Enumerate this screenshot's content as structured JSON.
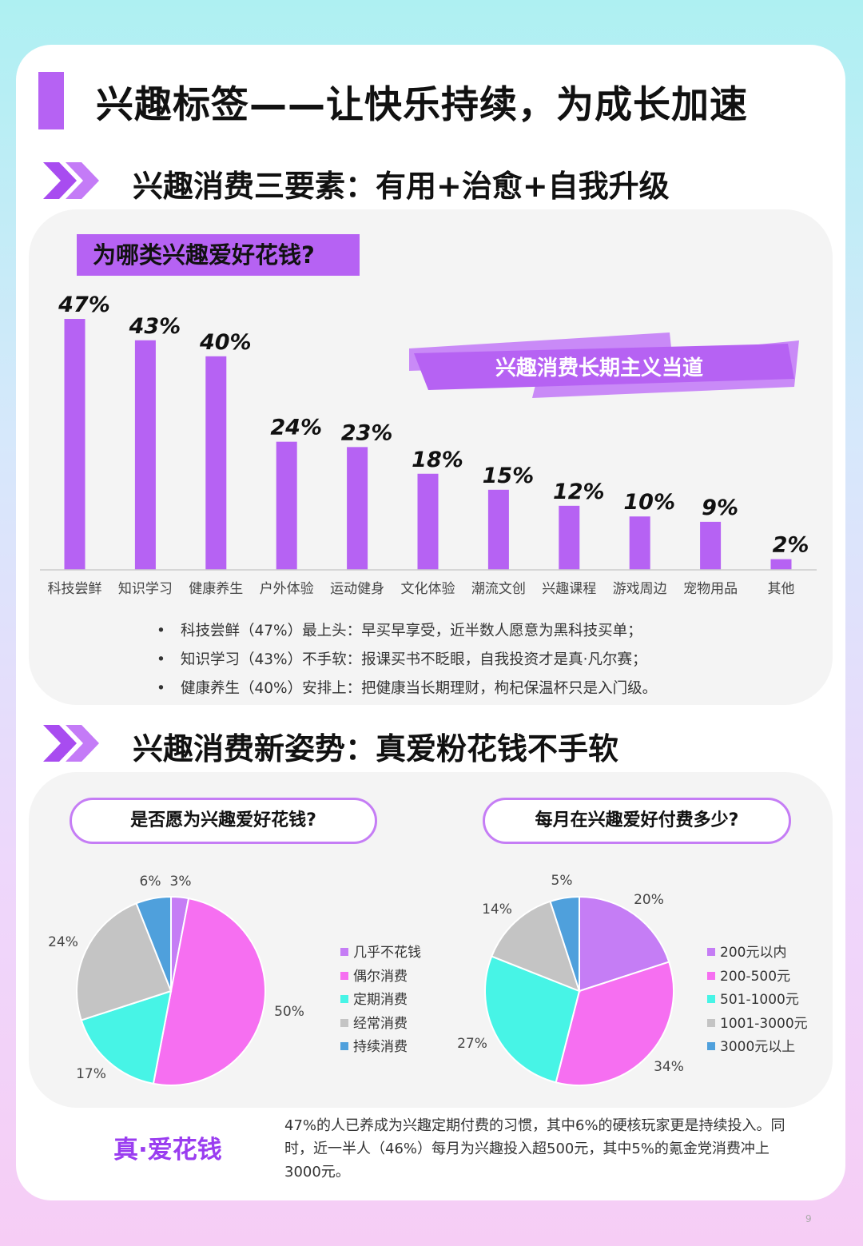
{
  "page_title": "兴趣标签——让快乐持续，为成长加速",
  "section1": {
    "title": "兴趣消费三要素：有用+治愈+自我升级",
    "question": "为哪类兴趣爱好花钱?",
    "banner": "兴趣消费长期主义当道",
    "bullets": [
      "科技尝鲜（47%）最上头：早买早享受，近半数人愿意为黑科技买单；",
      "知识学习（43%）不手软：报课买书不眨眼，自我投资才是真·凡尔赛；",
      "健康养生（40%）安排上：把健康当长期理财，枸杞保温杯只是入门级。"
    ]
  },
  "section2": {
    "title": "兴趣消费新姿势：真爱粉花钱不手软",
    "left_question": "是否愿为兴趣爱好花钱?",
    "right_question": "每月在兴趣爱好付费多少?",
    "slogan": "真·爱花钱",
    "summary": "47%的人已养成为兴趣定期付费的习惯，其中6%的硬核玩家更是持续投入。同时，近一半人（46%）每月为兴趣投入超500元，其中5%的氪金党消费冲上3000元。"
  },
  "colors": {
    "accent": "#b662f3",
    "pie": [
      "#c57df5",
      "#f66ff1",
      "#47f4e6",
      "#c4c4c4",
      "#4fa0dc"
    ]
  },
  "chart_data": [
    {
      "type": "bar",
      "title": "为哪类兴趣爱好花钱?",
      "categories": [
        "科技尝鲜",
        "知识学习",
        "健康养生",
        "户外体验",
        "运动健身",
        "文化体验",
        "潮流文创",
        "兴趣课程",
        "游戏周边",
        "宠物用品",
        "其他"
      ],
      "values": [
        47,
        43,
        40,
        24,
        23,
        18,
        15,
        12,
        10,
        9,
        2
      ],
      "value_labels": [
        "47%",
        "43%",
        "40%",
        "24%",
        "23%",
        "18%",
        "15%",
        "12%",
        "10%",
        "9%",
        "2%"
      ],
      "unit": "%",
      "color": "#b662f3",
      "grid": false
    },
    {
      "type": "pie",
      "title": "是否愿为兴趣爱好花钱?",
      "labels": [
        "几乎不花钱",
        "偶尔消费",
        "定期消费",
        "经常消费",
        "持续消费"
      ],
      "values": [
        3,
        50,
        17,
        24,
        6
      ],
      "value_labels": [
        "3%",
        "50%",
        "17%",
        "24%",
        "6%"
      ],
      "legend": "right"
    },
    {
      "type": "pie",
      "title": "每月在兴趣爱好付费多少?",
      "labels": [
        "200元以内",
        "200-500元",
        "501-1000元",
        "1001-3000元",
        "3000元以上"
      ],
      "values": [
        20,
        34,
        27,
        14,
        5
      ],
      "value_labels": [
        "20%",
        "34%",
        "27%",
        "14%",
        "5%"
      ],
      "legend": "right"
    }
  ],
  "page_number": "9"
}
